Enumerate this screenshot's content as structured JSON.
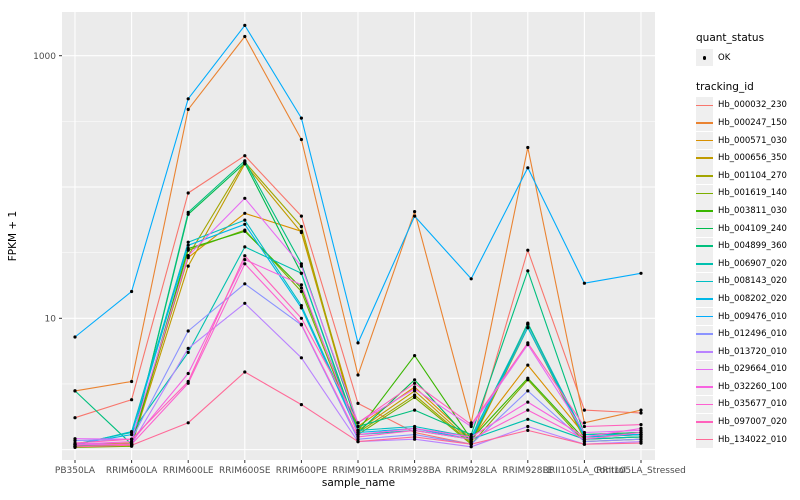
{
  "figure": {
    "colors": {
      "background": "#FFFFFF",
      "panel_background": "#EBEBEB",
      "grid": "#FFFFFF",
      "point": "#000000",
      "axis_text": "#4D4D4D",
      "axis_title": "#000000",
      "tick_mark": "#333333",
      "legend_key_background": "#EFEFEF"
    }
  },
  "legend": {
    "quant_status": {
      "title": "quant_status",
      "items": [
        {
          "label": "OK",
          "marker": "point-icon"
        }
      ]
    },
    "tracking_id": {
      "title": "tracking_id"
    }
  },
  "chart_data": {
    "type": "line",
    "title": "",
    "xlabel": "sample_name",
    "ylabel": "FPKM + 1",
    "y_scale": "log10",
    "y_tick_labels": [
      "1000",
      "10"
    ],
    "y_tick_values": [
      1000,
      10
    ],
    "y_major_gridlines": [
      1,
      10,
      100,
      1000
    ],
    "y_minor_gridlines": [
      3.162,
      31.62,
      316.2
    ],
    "ylim_log10": [
      -0.04,
      3.33
    ],
    "grid": true,
    "legend_position": "right",
    "point_marker_on_every_value": true,
    "categories": [
      "PB350LA",
      "RRIM600LA",
      "RRIM600LE",
      "RRIM600SE",
      "RRIM600PE",
      "RRIM901LA",
      "RRIM928BA",
      "RRIM928LA",
      "RRIM928LE",
      "RRII105LA_Control",
      "RRII105LA_Stressed"
    ],
    "series": [
      {
        "name": "Hb_000032_230",
        "color": "#F8766D",
        "values": [
          1.75,
          2.4,
          90,
          173,
          60,
          2.25,
          1.35,
          1.1,
          33,
          2.0,
          1.9
        ]
      },
      {
        "name": "Hb_000247_150",
        "color": "#EA8331",
        "values": [
          2.8,
          3.3,
          390,
          1400,
          230,
          3.7,
          65,
          1.6,
          200,
          1.6,
          2.0
        ]
      },
      {
        "name": "Hb_000571_030",
        "color": "#D89000",
        "values": [
          1.1,
          1.12,
          29,
          63,
          46,
          1.5,
          3.0,
          1.2,
          4.4,
          1.3,
          1.35
        ]
      },
      {
        "name": "Hb_000656_350",
        "color": "#C09B00",
        "values": [
          1.05,
          1.07,
          25,
          150,
          45,
          1.4,
          2.8,
          1.15,
          9.0,
          1.25,
          1.3
        ]
      },
      {
        "name": "Hb_001104_270",
        "color": "#A3A500",
        "values": [
          1.06,
          1.08,
          30,
          155,
          50,
          1.35,
          2.6,
          1.12,
          8.5,
          1.2,
          1.25
        ]
      },
      {
        "name": "Hb_001619_140",
        "color": "#7CAE00",
        "values": [
          1.04,
          1.06,
          33,
          47,
          16,
          1.3,
          2.5,
          1.1,
          3.4,
          1.15,
          1.2
        ]
      },
      {
        "name": "Hb_003811_030",
        "color": "#39B600",
        "values": [
          1.05,
          1.08,
          34,
          46,
          17,
          1.4,
          5.2,
          1.2,
          3.5,
          1.2,
          1.25
        ]
      },
      {
        "name": "Hb_004109_240",
        "color": "#00BB4E",
        "values": [
          1.06,
          1.1,
          62,
          152,
          22,
          1.35,
          3.4,
          1.15,
          9.2,
          1.25,
          1.3
        ]
      },
      {
        "name": "Hb_004899_360",
        "color": "#00BF7D",
        "values": [
          2.8,
          1.1,
          64,
          158,
          26,
          1.5,
          2.0,
          1.3,
          23,
          1.3,
          1.35
        ]
      },
      {
        "name": "Hb_006907_020",
        "color": "#00C0AF",
        "values": [
          1.1,
          1.35,
          5.5,
          35,
          22,
          1.3,
          1.4,
          1.2,
          1.7,
          1.2,
          1.25
        ]
      },
      {
        "name": "Hb_008143_020",
        "color": "#00BFC4",
        "values": [
          1.08,
          1.37,
          38,
          56,
          12.5,
          1.4,
          1.5,
          1.25,
          9.0,
          1.3,
          1.3
        ]
      },
      {
        "name": "Hb_008202_020",
        "color": "#00B8E7",
        "values": [
          1.1,
          1.3,
          36,
          52,
          12,
          1.35,
          1.45,
          1.2,
          8.5,
          1.25,
          1.3
        ]
      },
      {
        "name": "Hb_009476_010",
        "color": "#00ACFC",
        "values": [
          7.2,
          16,
          470,
          1700,
          335,
          6.5,
          60,
          20,
          140,
          18.5,
          22
        ]
      },
      {
        "name": "Hb_012496_010",
        "color": "#8B93FF",
        "values": [
          1.17,
          1.2,
          8,
          18.3,
          8.9,
          1.2,
          1.3,
          1.1,
          2.8,
          1.15,
          1.2
        ]
      },
      {
        "name": "Hb_013720_010",
        "color": "#B983FF",
        "values": [
          1.1,
          1.1,
          5.9,
          13,
          5,
          1.15,
          1.2,
          1.05,
          1.5,
          1.1,
          1.15
        ]
      },
      {
        "name": "Hb_029664_010",
        "color": "#E76BF3",
        "values": [
          1.21,
          1.2,
          30,
          82,
          25,
          1.6,
          2.9,
          1.5,
          6.3,
          1.35,
          1.4
        ]
      },
      {
        "name": "Hb_032260_100",
        "color": "#F763E0",
        "values": [
          1.1,
          1.15,
          3.8,
          28,
          18,
          1.3,
          1.45,
          1.25,
          2.3,
          1.25,
          1.45
        ]
      },
      {
        "name": "Hb_035677_010",
        "color": "#FD61D1",
        "values": [
          1.08,
          1.1,
          3.2,
          26,
          9,
          1.25,
          1.4,
          1.2,
          2.0,
          1.2,
          1.35
        ]
      },
      {
        "name": "Hb_097007_020",
        "color": "#FF62BC",
        "values": [
          1.12,
          1.2,
          3.3,
          30,
          10,
          1.6,
          3.2,
          1.55,
          6.5,
          1.5,
          1.55
        ]
      },
      {
        "name": "Hb_134022_010",
        "color": "#FF6A98",
        "values": [
          1.05,
          1.08,
          1.6,
          3.9,
          2.2,
          1.15,
          1.25,
          1.1,
          1.4,
          1.1,
          1.12
        ]
      }
    ]
  }
}
